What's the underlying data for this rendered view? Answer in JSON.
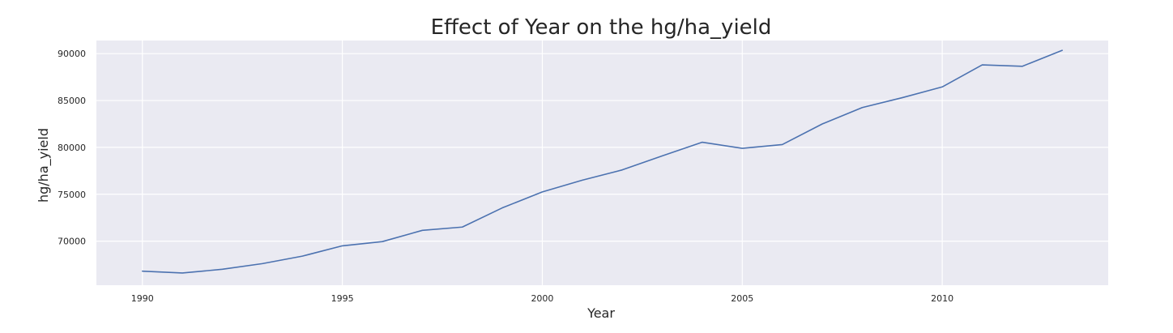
{
  "chart_data": {
    "type": "line",
    "title": "Effect of Year on the hg/ha_yield",
    "xlabel": "Year",
    "ylabel": "hg/ha_yield",
    "xlim": [
      1988.85,
      2014.15
    ],
    "ylim": [
      65300,
      91400
    ],
    "xticks": [
      1990,
      1995,
      2000,
      2005,
      2010
    ],
    "yticks": [
      70000,
      75000,
      80000,
      85000,
      90000
    ],
    "grid": true,
    "legend": "none",
    "colors": {
      "background": "#eaeaf2",
      "grid": "#ffffff",
      "line": "#4c72b0"
    },
    "series": [
      {
        "x": [
          1990,
          1991,
          1992,
          1993,
          1994,
          1995,
          1996,
          1997,
          1998,
          1999,
          2000,
          2001,
          2002,
          2003,
          2004,
          2005,
          2006,
          2007,
          2008,
          2009,
          2010,
          2011,
          2012,
          2013
        ],
        "values": [
          66800,
          66600,
          67000,
          67600,
          68400,
          69500,
          69950,
          71150,
          71500,
          73550,
          75250,
          76500,
          77600,
          79100,
          80550,
          79900,
          80300,
          82500,
          84250,
          85300,
          86450,
          88800,
          88650,
          90350
        ]
      }
    ]
  }
}
